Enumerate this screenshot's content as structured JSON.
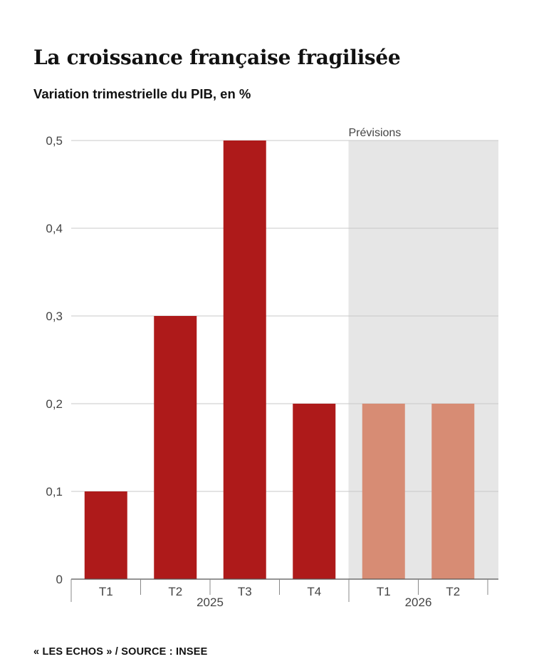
{
  "title": "La croissance française fragilisée",
  "subtitle": "Variation trimestrielle du PIB, en %",
  "source": "« LES ECHOS » / SOURCE : INSEE",
  "colors": {
    "actual": "#ae1a1a",
    "forecast": "#d78c74",
    "forecast_band": "#e6e6e6",
    "grid": "#c8c8c8"
  },
  "chart_data": {
    "type": "bar",
    "categories": [
      "T1",
      "T2",
      "T3",
      "T4",
      "T1",
      "T2"
    ],
    "values": [
      0.1,
      0.3,
      0.5,
      0.2,
      0.2,
      0.2
    ],
    "groups": [
      {
        "label": "2025",
        "categories": [
          "T1",
          "T2",
          "T3",
          "T4"
        ]
      },
      {
        "label": "2026",
        "categories": [
          "T1",
          "T2"
        ]
      }
    ],
    "forecast": [
      false,
      false,
      false,
      false,
      true,
      true
    ],
    "forecast_label": "Prévisions",
    "yticks": [
      "0",
      "0,1",
      "0,2",
      "0,3",
      "0,4",
      "0,5"
    ],
    "ytick_values": [
      0,
      0.1,
      0.2,
      0.3,
      0.4,
      0.5
    ],
    "ylim": [
      0,
      0.5
    ],
    "grid": true,
    "title": "La croissance française fragilisée",
    "ylabel": "Variation trimestrielle du PIB, en %"
  }
}
